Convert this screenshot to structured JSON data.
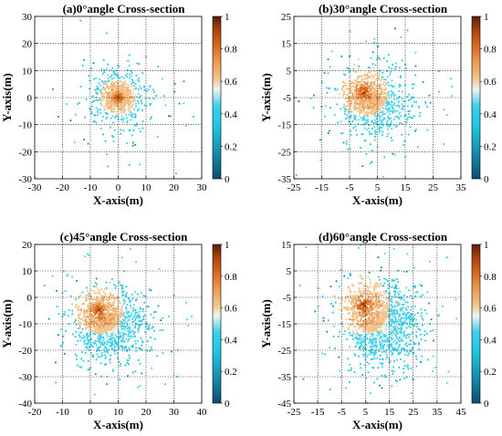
{
  "colors": {
    "background": "#ffffff",
    "grid": "#000000",
    "colormap": [
      "#0b4f6c",
      "#1489a8",
      "#1ec6e0",
      "#40d0ec",
      "#eef4ee",
      "#f2c48a",
      "#ec9a55",
      "#d8691f",
      "#a8420e",
      "#5a1e06"
    ]
  },
  "chart_data": [
    {
      "type": "scatter",
      "title": "(a)0°angle Cross-section",
      "xlabel": "X-axis(m)",
      "ylabel": "Y-axis(m)",
      "xlim": [
        -30,
        30
      ],
      "ylim": [
        -30,
        30
      ],
      "xticks": [
        "-30",
        "-20",
        "-10",
        "0",
        "10",
        "20",
        "30"
      ],
      "yticks": [
        "30",
        "20",
        "10",
        "0",
        "-10",
        "-20",
        "-30"
      ],
      "grid": true,
      "colorbar": {
        "range": [
          0,
          1
        ],
        "ticks": [
          "1",
          "0.8",
          "0.6",
          "0.4",
          "0.2",
          "0"
        ]
      },
      "center": [
        0,
        0
      ],
      "spread": [
        7,
        7
      ],
      "colored_core": [
        0,
        0
      ],
      "core_radius": 3,
      "count": 700
    },
    {
      "type": "scatter",
      "title": "(b)30°angle Cross-section",
      "xlabel": "X-axis(m)",
      "ylabel": "Y-axis(m)",
      "xlim": [
        -25,
        35
      ],
      "ylim": [
        -35,
        25
      ],
      "xticks": [
        "-25",
        "-15",
        "-5",
        "5",
        "15",
        "25",
        "35"
      ],
      "yticks": [
        "25",
        "15",
        "5",
        "-5",
        "-15",
        "-25",
        "-35"
      ],
      "grid": true,
      "colorbar": {
        "range": [
          0,
          1
        ],
        "ticks": [
          "1",
          "0.8",
          "0.6",
          "0.4",
          "0.2",
          "0"
        ]
      },
      "center": [
        4,
        -7
      ],
      "spread": [
        8,
        8
      ],
      "colored_core": [
        0,
        -3
      ],
      "core_radius": 4,
      "count": 1100
    },
    {
      "type": "scatter",
      "title": "(c)45°angle Cross-section",
      "xlabel": "X-axis(m)",
      "ylabel": "Y-axis(m)",
      "xlim": [
        -20,
        40
      ],
      "ylim": [
        -40,
        20
      ],
      "xticks": [
        "-20",
        "-10",
        "0",
        "10",
        "20",
        "30",
        "40"
      ],
      "yticks": [
        "20",
        "10",
        "0",
        "-10",
        "-20",
        "-30",
        "-40"
      ],
      "grid": true,
      "colorbar": {
        "range": [
          0,
          1
        ],
        "ticks": [
          "1",
          "0.8",
          "0.6",
          "0.4",
          "0.2",
          "0"
        ]
      },
      "center": [
        7,
        -11
      ],
      "spread": [
        8,
        8
      ],
      "colored_core": [
        3,
        -5
      ],
      "core_radius": 4,
      "count": 1500
    },
    {
      "type": "scatter",
      "title": "(d)60°angle Cross-section",
      "xlabel": "X-axis(m)",
      "ylabel": "Y-axis(m)",
      "xlim": [
        -25,
        45
      ],
      "ylim": [
        -45,
        15
      ],
      "xticks": [
        "-25",
        "-15",
        "-5",
        "5",
        "15",
        "25",
        "35",
        "45"
      ],
      "yticks": [
        "15",
        "5",
        "-5",
        "-15",
        "-25",
        "-35",
        "-45"
      ],
      "grid": true,
      "colorbar": {
        "range": [
          0,
          1
        ],
        "ticks": [
          "1",
          "0.8",
          "0.6",
          "0.4",
          "0.2",
          "0"
        ]
      },
      "center": [
        12,
        -16
      ],
      "spread": [
        9,
        9
      ],
      "colored_core": [
        4,
        -8
      ],
      "core_radius": 5,
      "count": 1800
    }
  ]
}
